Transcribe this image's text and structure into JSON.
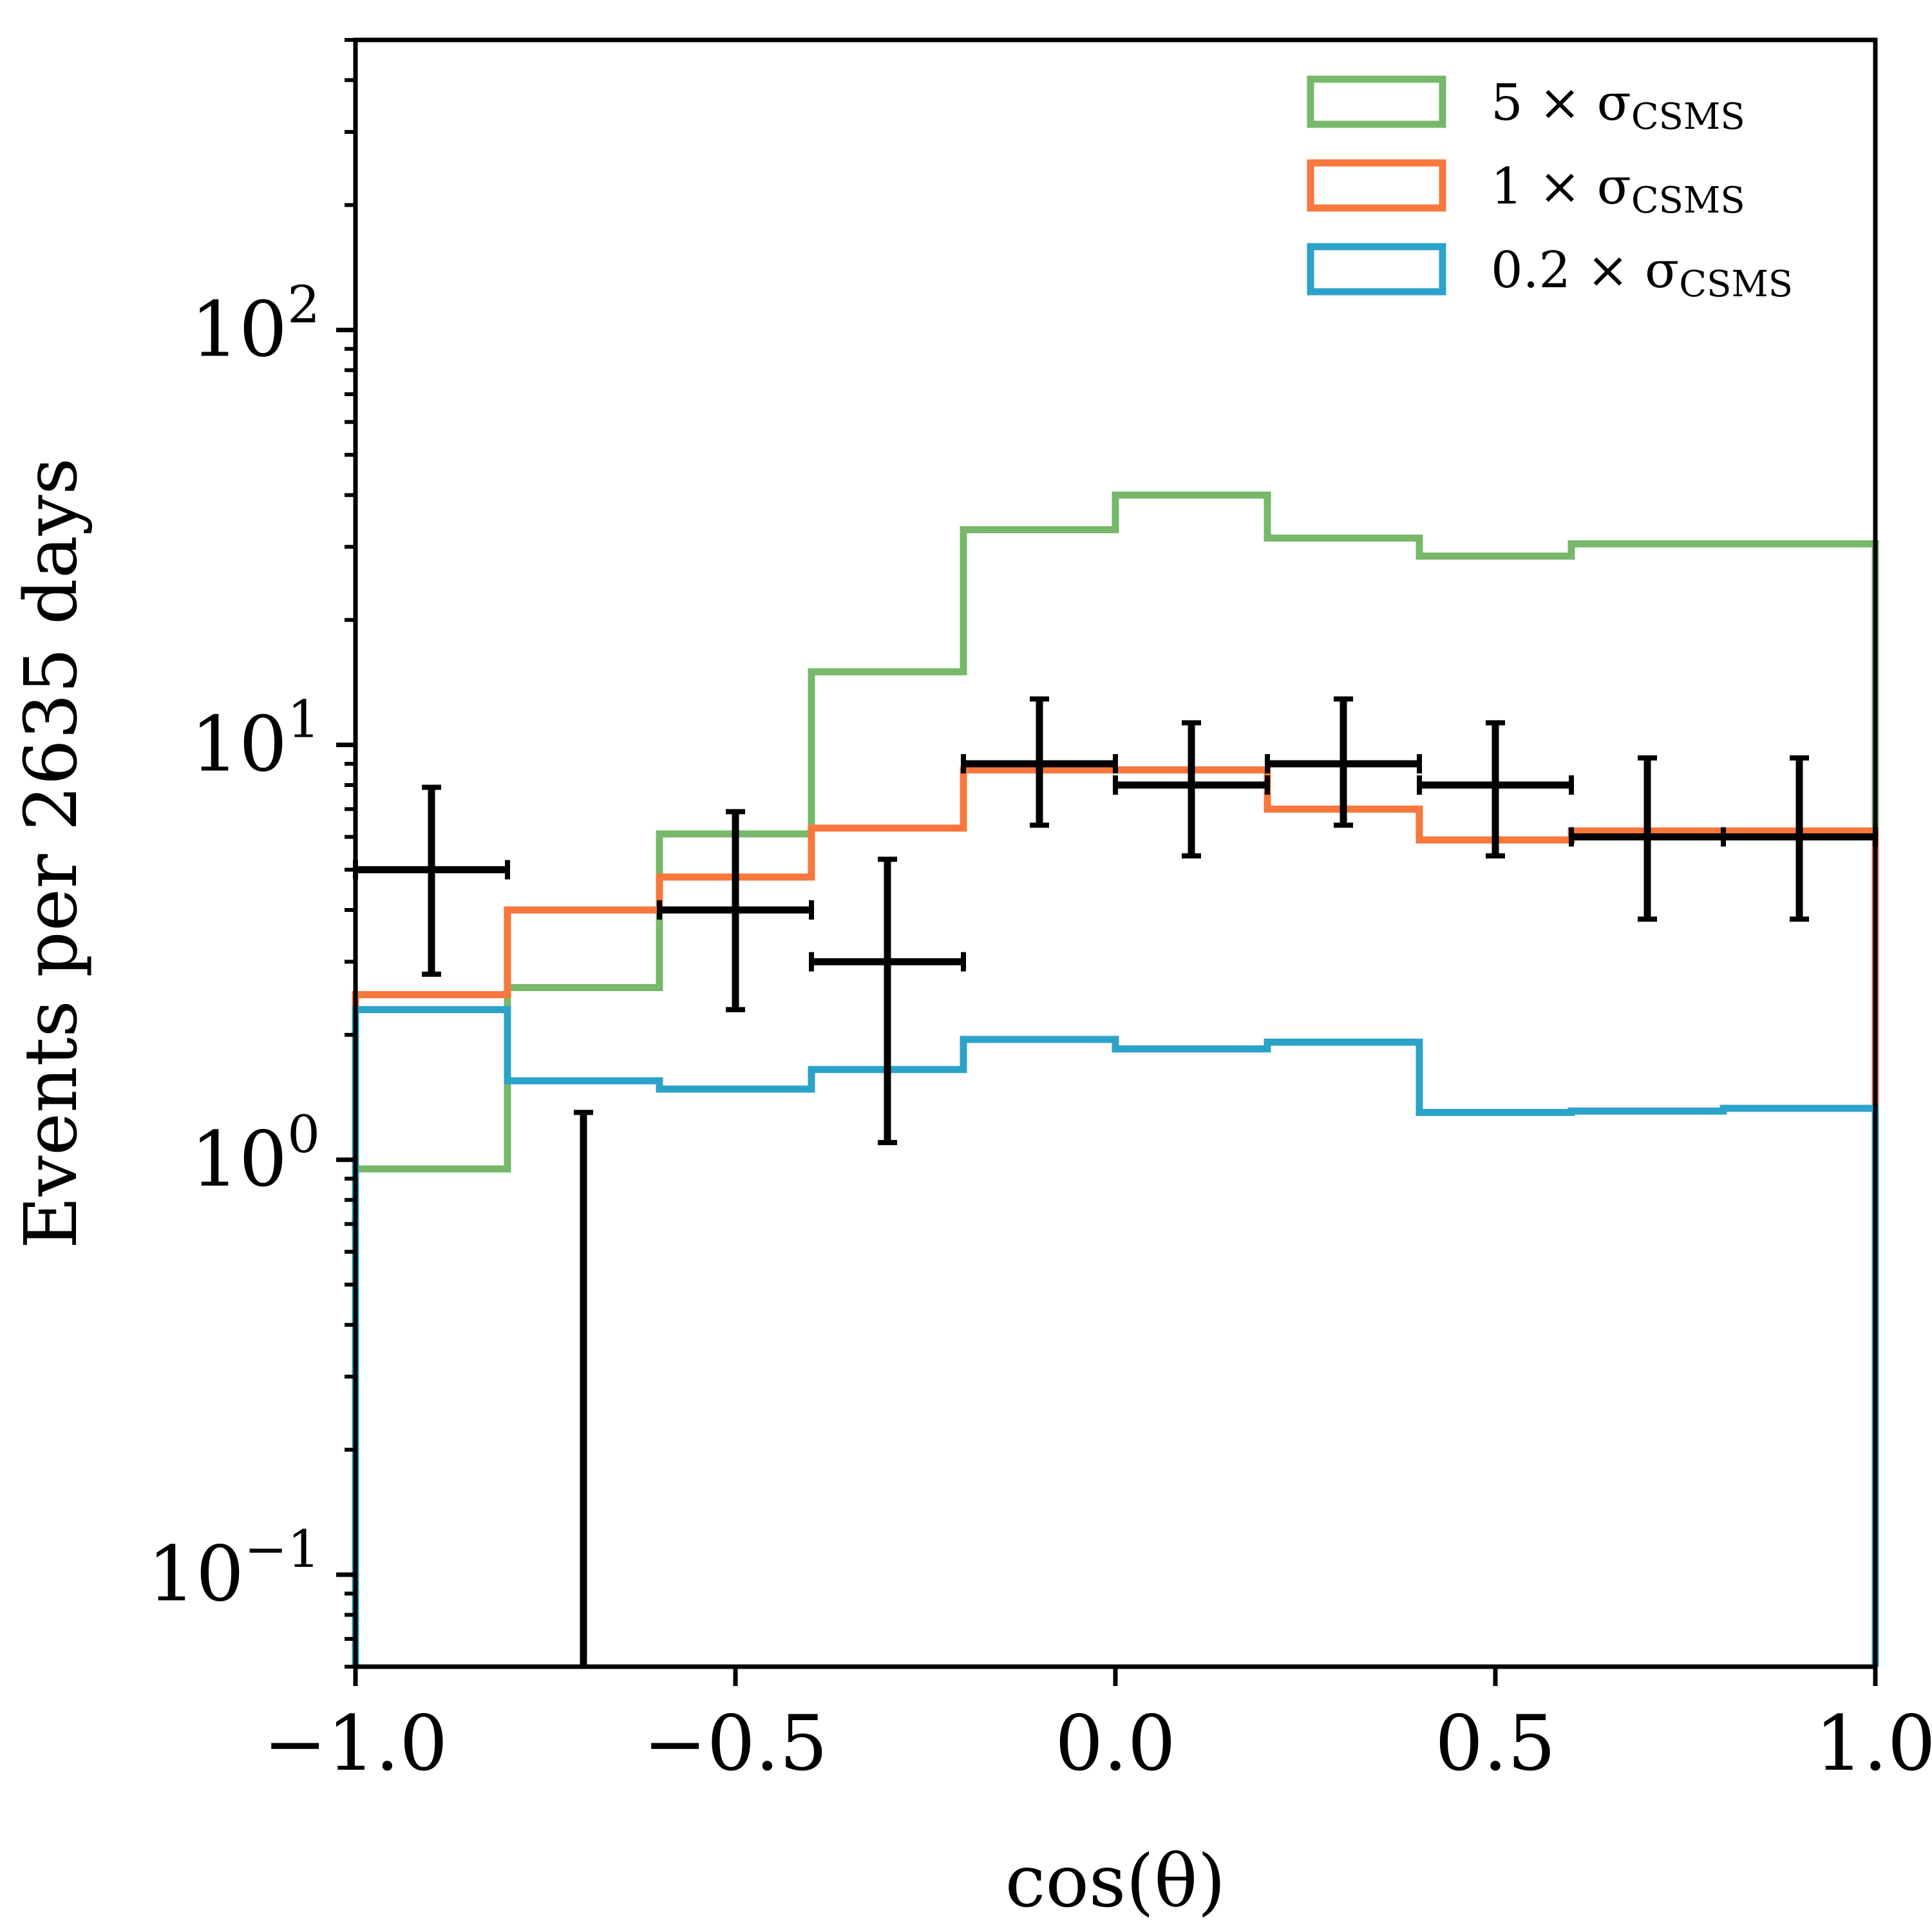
{
  "chart_data": {
    "type": "histogram",
    "xlabel": "cos(θ)",
    "ylabel": "Events per 2635 days",
    "xlim": [
      -1.0,
      1.0
    ],
    "ylim": [
      0.06,
      500
    ],
    "yscale": "log",
    "grid": false,
    "legend_position": "top-right",
    "x_ticks": [
      {
        "value": -1.0,
        "label": "−1.0"
      },
      {
        "value": -0.5,
        "label": "−0.5"
      },
      {
        "value": 0.0,
        "label": "0.0"
      },
      {
        "value": 0.5,
        "label": "0.5"
      },
      {
        "value": 1.0,
        "label": "1.0"
      }
    ],
    "y_ticks": [
      {
        "value": 0.1,
        "base": "10",
        "exp": "−1"
      },
      {
        "value": 1,
        "base": "10",
        "exp": "0"
      },
      {
        "value": 10,
        "base": "10",
        "exp": "1"
      },
      {
        "value": 100,
        "base": "10",
        "exp": "2"
      }
    ],
    "bin_edges": [
      -1.0,
      -0.8,
      -0.6,
      -0.4,
      -0.2,
      0.0,
      0.2,
      0.4,
      0.6,
      0.8,
      1.0
    ],
    "series": [
      {
        "name_prefix": "5 × σ",
        "name_sub": "CSMS",
        "color": "#77b86b",
        "values": [
          0.95,
          2.6,
          6.1,
          15,
          33,
          40,
          31.5,
          28.5,
          30.5,
          30.5
        ]
      },
      {
        "name_prefix": "1 × σ",
        "name_sub": "CSMS",
        "color": "#f7773c",
        "values": [
          2.5,
          4.0,
          4.8,
          6.3,
          8.7,
          8.7,
          7.0,
          5.9,
          6.2,
          6.2
        ]
      },
      {
        "name_prefix": "0.2 × σ",
        "name_sub": "CSMS",
        "color": "#2ba3c9",
        "values": [
          2.3,
          1.55,
          1.48,
          1.65,
          1.95,
          1.85,
          1.92,
          1.3,
          1.31,
          1.33
        ]
      }
    ],
    "data_points": {
      "color": "#000000",
      "x": [
        -0.9,
        -0.7,
        -0.5,
        -0.3,
        -0.1,
        0.1,
        0.3,
        0.5,
        0.7,
        0.9
      ],
      "x_halfwidth": 0.1,
      "y": [
        5,
        0,
        4,
        3,
        9,
        8,
        9,
        8,
        6,
        6
      ],
      "y_low": [
        2.8,
        0.06,
        2.3,
        1.1,
        6.4,
        5.4,
        6.4,
        5.4,
        3.8,
        3.8
      ],
      "y_high": [
        7.9,
        1.3,
        6.9,
        5.3,
        12.9,
        11.3,
        12.9,
        11.3,
        9.3,
        9.3
      ]
    }
  }
}
